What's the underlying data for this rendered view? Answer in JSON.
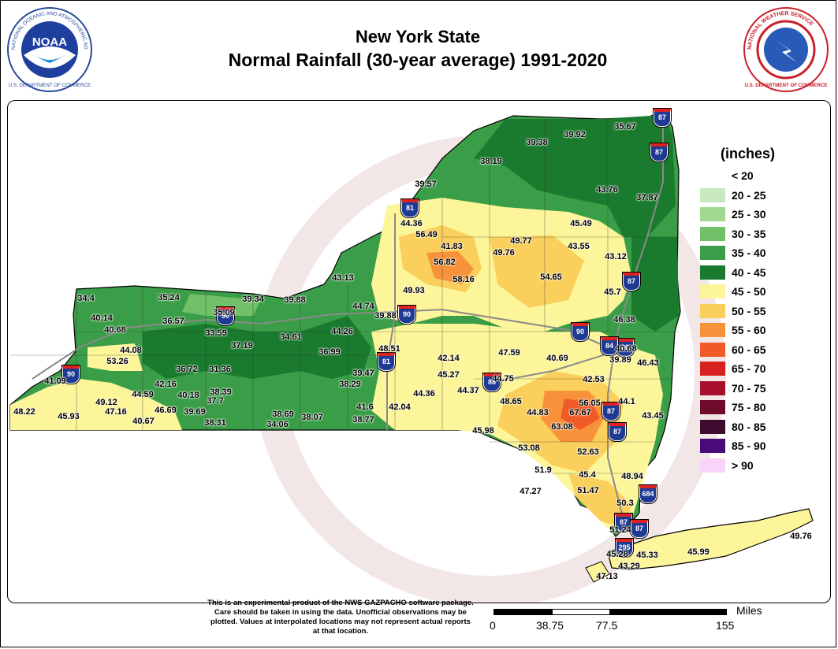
{
  "title_line1": "New York State",
  "title_line2": "Normal Rainfall (30-year average) 1991-2020",
  "noaa_seal": {
    "text_outer": "NATIONAL OCEANIC AND ATMOSPHERIC ADMINISTRATION",
    "text_bottom": "U.S. DEPARTMENT OF COMMERCE",
    "center": "NOAA"
  },
  "nws_seal": {
    "text_outer": "NATIONAL WEATHER SERVICE",
    "text_bottom": "U.S. DEPARTMENT OF COMMERCE"
  },
  "legend": {
    "title": "(inches)",
    "items": [
      {
        "label": "< 20",
        "color": "#ffffff"
      },
      {
        "label": "20 - 25",
        "color": "#c8e8c0"
      },
      {
        "label": "25 - 30",
        "color": "#a0d890"
      },
      {
        "label": "30 - 35",
        "color": "#6fc067"
      },
      {
        "label": "35 - 40",
        "color": "#3a9e48"
      },
      {
        "label": "40 - 45",
        "color": "#1a7a2e"
      },
      {
        "label": "45 - 50",
        "color": "#fdf59a"
      },
      {
        "label": "50 - 55",
        "color": "#fbcf5b"
      },
      {
        "label": "55 - 60",
        "color": "#f7923a"
      },
      {
        "label": "60 - 65",
        "color": "#f05a26"
      },
      {
        "label": "65 - 70",
        "color": "#d8201e"
      },
      {
        "label": "70 - 75",
        "color": "#a80f2c"
      },
      {
        "label": "75 - 80",
        "color": "#6e0a2a"
      },
      {
        "label": "80 - 85",
        "color": "#3e0a2e"
      },
      {
        "label": "85 - 90",
        "color": "#4b0a7a"
      },
      {
        "label": "> 90",
        "color": "#f8d4f8"
      }
    ]
  },
  "interstate_shields": [
    "87",
    "87",
    "81",
    "87",
    "90",
    "90",
    "90",
    "81",
    "88",
    "84",
    "87",
    "87",
    "87",
    "684",
    "87",
    "295",
    "90",
    "90"
  ],
  "observations": [
    {
      "value": "35.67"
    },
    {
      "value": "39.38"
    },
    {
      "value": "39.92"
    },
    {
      "value": "38.19"
    },
    {
      "value": "39.57"
    },
    {
      "value": "43.76"
    },
    {
      "value": "37.87"
    },
    {
      "value": "44.36"
    },
    {
      "value": "56.49"
    },
    {
      "value": "41.83"
    },
    {
      "value": "49.77"
    },
    {
      "value": "45.49"
    },
    {
      "value": "49.76"
    },
    {
      "value": "43.55"
    },
    {
      "value": "56.82"
    },
    {
      "value": "43.12"
    },
    {
      "value": "58.16"
    },
    {
      "value": "54.65"
    },
    {
      "value": "43.13"
    },
    {
      "value": "49.93"
    },
    {
      "value": "45.7"
    },
    {
      "value": "34.4"
    },
    {
      "value": "35.24"
    },
    {
      "value": "39.34"
    },
    {
      "value": "39.88"
    },
    {
      "value": "44.74"
    },
    {
      "value": "39.88"
    },
    {
      "value": "46.38"
    },
    {
      "value": "40.14"
    },
    {
      "value": "35.09"
    },
    {
      "value": "36.57"
    },
    {
      "value": "40.68"
    },
    {
      "value": "33.59"
    },
    {
      "value": "34.61"
    },
    {
      "value": "44.26"
    },
    {
      "value": "40.68"
    },
    {
      "value": "48.51"
    },
    {
      "value": "37.19"
    },
    {
      "value": "36.99"
    },
    {
      "value": "47.59"
    },
    {
      "value": "39.89"
    },
    {
      "value": "44.08"
    },
    {
      "value": "42.14"
    },
    {
      "value": "40.69"
    },
    {
      "value": "46.43"
    },
    {
      "value": "53.26"
    },
    {
      "value": "36.72"
    },
    {
      "value": "31.36"
    },
    {
      "value": "39.47"
    },
    {
      "value": "45.27"
    },
    {
      "value": "42.53"
    },
    {
      "value": "42.16"
    },
    {
      "value": "38.29"
    },
    {
      "value": "44.37"
    },
    {
      "value": "44.75"
    },
    {
      "value": "41.09"
    },
    {
      "value": "44.59"
    },
    {
      "value": "38.39"
    },
    {
      "value": "44.36"
    },
    {
      "value": "48.65"
    },
    {
      "value": "56.05"
    },
    {
      "value": "44.1"
    },
    {
      "value": "49.12"
    },
    {
      "value": "40.18"
    },
    {
      "value": "37.7"
    },
    {
      "value": "41.6"
    },
    {
      "value": "42.04"
    },
    {
      "value": "44.83"
    },
    {
      "value": "67.67"
    },
    {
      "value": "43.45"
    },
    {
      "value": "48.22"
    },
    {
      "value": "47.16"
    },
    {
      "value": "46.69"
    },
    {
      "value": "39.69"
    },
    {
      "value": "38.69"
    },
    {
      "value": "38.07"
    },
    {
      "value": "63.08"
    },
    {
      "value": "45.93"
    },
    {
      "value": "40.67"
    },
    {
      "value": "38.31"
    },
    {
      "value": "34.06"
    },
    {
      "value": "38.77"
    },
    {
      "value": "45.98"
    },
    {
      "value": "53.08"
    },
    {
      "value": "52.63"
    },
    {
      "value": "51.9"
    },
    {
      "value": "45.4"
    },
    {
      "value": "48.94"
    },
    {
      "value": "47.27"
    },
    {
      "value": "51.47"
    },
    {
      "value": "50.3"
    },
    {
      "value": "51.24"
    },
    {
      "value": "49.76"
    },
    {
      "value": "45.99"
    },
    {
      "value": "45.28"
    },
    {
      "value": "45.33"
    },
    {
      "value": "43.29"
    },
    {
      "value": "47.13"
    }
  ],
  "disclaimer": "This is an experimental product of the NWS GAZPACHO software package. Care should be taken in using the data. Unofficial observations may be plotted. Values at interpolated locations may not represent actual reports at that location.",
  "scalebar": {
    "unit": "Miles",
    "labels": [
      "0",
      "38.75",
      "77.5",
      "155"
    ]
  }
}
